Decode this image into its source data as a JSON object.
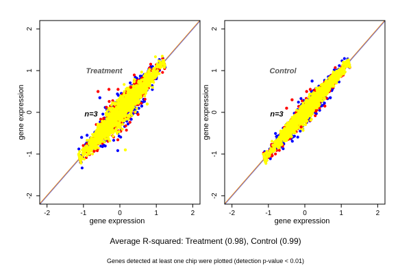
{
  "chart_data": [
    {
      "type": "scatter",
      "title": "Treatment",
      "annotation": "n=3",
      "xlabel": "gene expression",
      "ylabel": "gene expression",
      "xlim": [
        -2.2,
        2.2
      ],
      "ylim": [
        -2.2,
        2.2
      ],
      "xticks": [
        "-2",
        "-1",
        "0",
        "1",
        "2"
      ],
      "yticks": [
        "-2",
        "-1",
        "0",
        "1",
        "2"
      ],
      "series_colors": [
        "#0000ff",
        "#ff0000",
        "#ffff00"
      ],
      "reference_lines": [
        {
          "slope": 1,
          "intercept": 0,
          "color": "#ff8c00"
        },
        {
          "slope": 1,
          "intercept": 0,
          "color": "#6f6fcf"
        }
      ],
      "cloud": {
        "x_range": [
          -1.1,
          1.2
        ],
        "spread": 0.13
      },
      "outliers": [
        {
          "x": -0.55,
          "y": 0.35,
          "color": "#0000ff"
        },
        {
          "x": -0.3,
          "y": 0.55,
          "color": "#ff0000"
        },
        {
          "x": 0.6,
          "y": 0.15,
          "color": "#0000ff"
        },
        {
          "x": 0.75,
          "y": 0.2,
          "color": "#ffff00"
        },
        {
          "x": 0.15,
          "y": -0.9,
          "color": "#ffff00"
        },
        {
          "x": -0.6,
          "y": 0.5,
          "color": "#ff0000"
        },
        {
          "x": -0.05,
          "y": 0.55,
          "color": "#ff0000"
        },
        {
          "x": 0.3,
          "y": 0.6,
          "color": "#ff0000"
        },
        {
          "x": -1.05,
          "y": -0.6,
          "color": "#0000ff"
        },
        {
          "x": -0.9,
          "y": -0.55,
          "color": "#0000ff"
        },
        {
          "x": 0.5,
          "y": -0.05,
          "color": "#ff0000"
        }
      ]
    },
    {
      "type": "scatter",
      "title": "Control",
      "annotation": "n=3",
      "xlabel": "gene expression",
      "ylabel": "gene expression",
      "xlim": [
        -2.2,
        2.2
      ],
      "ylim": [
        -2.2,
        2.2
      ],
      "xticks": [
        "-2",
        "-1",
        "0",
        "1",
        "2"
      ],
      "yticks": [
        "-2",
        "-1",
        "0",
        "1",
        "2"
      ],
      "series_colors": [
        "#0000ff",
        "#ff0000",
        "#ffff00"
      ],
      "reference_lines": [
        {
          "slope": 1,
          "intercept": 0,
          "color": "#ff8c00"
        },
        {
          "slope": 1,
          "intercept": 0,
          "color": "#6f6fcf"
        }
      ],
      "cloud": {
        "x_range": [
          -1.1,
          1.2
        ],
        "spread": 0.09
      },
      "outliers": [
        {
          "x": 0.2,
          "y": 0.75,
          "color": "#0000ff"
        },
        {
          "x": 0.15,
          "y": 0.55,
          "color": "#ff0000"
        },
        {
          "x": -0.35,
          "y": 0.3,
          "color": "#ff0000"
        },
        {
          "x": 0.55,
          "y": 0.15,
          "color": "#ff0000"
        },
        {
          "x": 0.05,
          "y": 0.5,
          "color": "#ff0000"
        },
        {
          "x": -0.5,
          "y": 0.1,
          "color": "#ff0000"
        },
        {
          "x": 0.7,
          "y": 0.35,
          "color": "#0000ff"
        },
        {
          "x": -0.1,
          "y": -0.35,
          "color": "#ff0000"
        }
      ]
    }
  ],
  "caption_main": "Average R-squared: Treatment (0.98), Control (0.99)",
  "caption_sub": "Genes detected at least one chip were plotted (detection p-value < 0.01)"
}
